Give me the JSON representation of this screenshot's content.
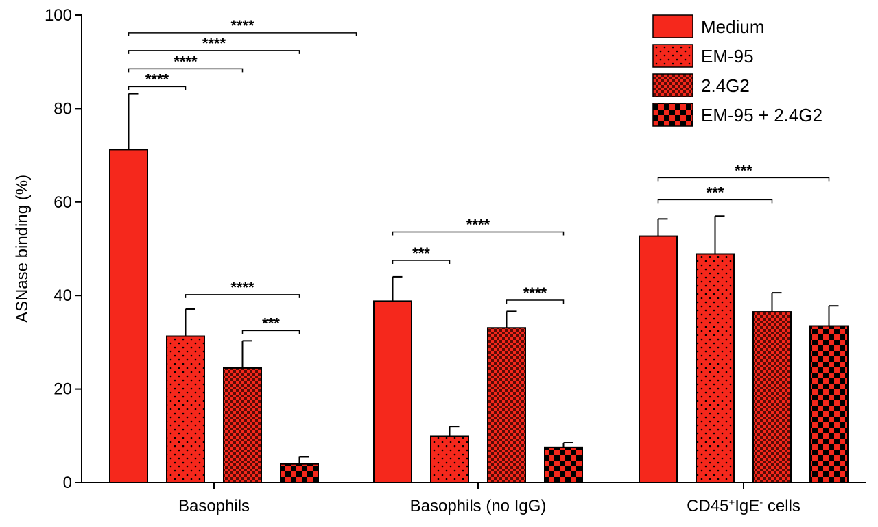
{
  "chart_data": {
    "type": "bar",
    "title": "",
    "xlabel": "",
    "ylabel": "ASNase binding (%)",
    "ylim": [
      0,
      100
    ],
    "yticks": [
      0,
      20,
      40,
      60,
      80,
      100
    ],
    "grid": false,
    "legend_position": "top-right",
    "categories": [
      {
        "label": "Basophils",
        "sup1": "",
        "mid": "",
        "sup2": "",
        "tail": ""
      },
      {
        "label": "Basophils (no IgG)",
        "sup1": "",
        "mid": "",
        "sup2": "",
        "tail": ""
      },
      {
        "label": "CD45",
        "sup1": "+",
        "mid": "IgE",
        "sup2": "-",
        "tail": " cells"
      }
    ],
    "series": [
      {
        "name": "Medium",
        "pattern": "solid",
        "values": [
          71.2,
          38.8,
          52.7
        ],
        "errors": [
          12.0,
          5.2,
          3.7
        ]
      },
      {
        "name": "EM-95",
        "pattern": "dots",
        "values": [
          31.3,
          9.9,
          48.9
        ],
        "errors": [
          5.8,
          2.1,
          8.1
        ]
      },
      {
        "name": "2.4G2",
        "pattern": "fine-check",
        "values": [
          24.5,
          33.1,
          36.5
        ],
        "errors": [
          5.8,
          3.5,
          4.1
        ]
      },
      {
        "name": "EM-95 + 2.4G2",
        "pattern": "coarse-check",
        "values": [
          4.0,
          7.5,
          33.5
        ],
        "errors": [
          1.5,
          1.0,
          4.3
        ]
      }
    ],
    "significance": [
      {
        "group": 0,
        "from": 0,
        "to": 4,
        "y": 96.2,
        "label": "****"
      },
      {
        "group": 0,
        "from": 0,
        "to": 3,
        "y": 92.4,
        "label": "****"
      },
      {
        "group": 0,
        "from": 0,
        "to": 2,
        "y": 88.5,
        "label": "****"
      },
      {
        "group": 0,
        "from": 0,
        "to": 1,
        "y": 84.7,
        "label": "****"
      },
      {
        "group": 0,
        "from": 1,
        "to": 3,
        "y": 40.2,
        "label": "****"
      },
      {
        "group": 0,
        "from": 2,
        "to": 3,
        "y": 32.5,
        "label": "***"
      },
      {
        "group": 1,
        "from": 0,
        "to": 3,
        "y": 53.6,
        "label": "****"
      },
      {
        "group": 1,
        "from": 0,
        "to": 1,
        "y": 47.5,
        "label": "***"
      },
      {
        "group": 1,
        "from": 2,
        "to": 3,
        "y": 39.0,
        "label": "****"
      },
      {
        "group": 2,
        "from": 0,
        "to": 3,
        "y": 65.2,
        "label": "***"
      },
      {
        "group": 2,
        "from": 0,
        "to": 2,
        "y": 60.5,
        "label": "***"
      }
    ],
    "colors": {
      "bar": "#f5281c",
      "dark": "#000000",
      "axis": "#000000"
    }
  }
}
